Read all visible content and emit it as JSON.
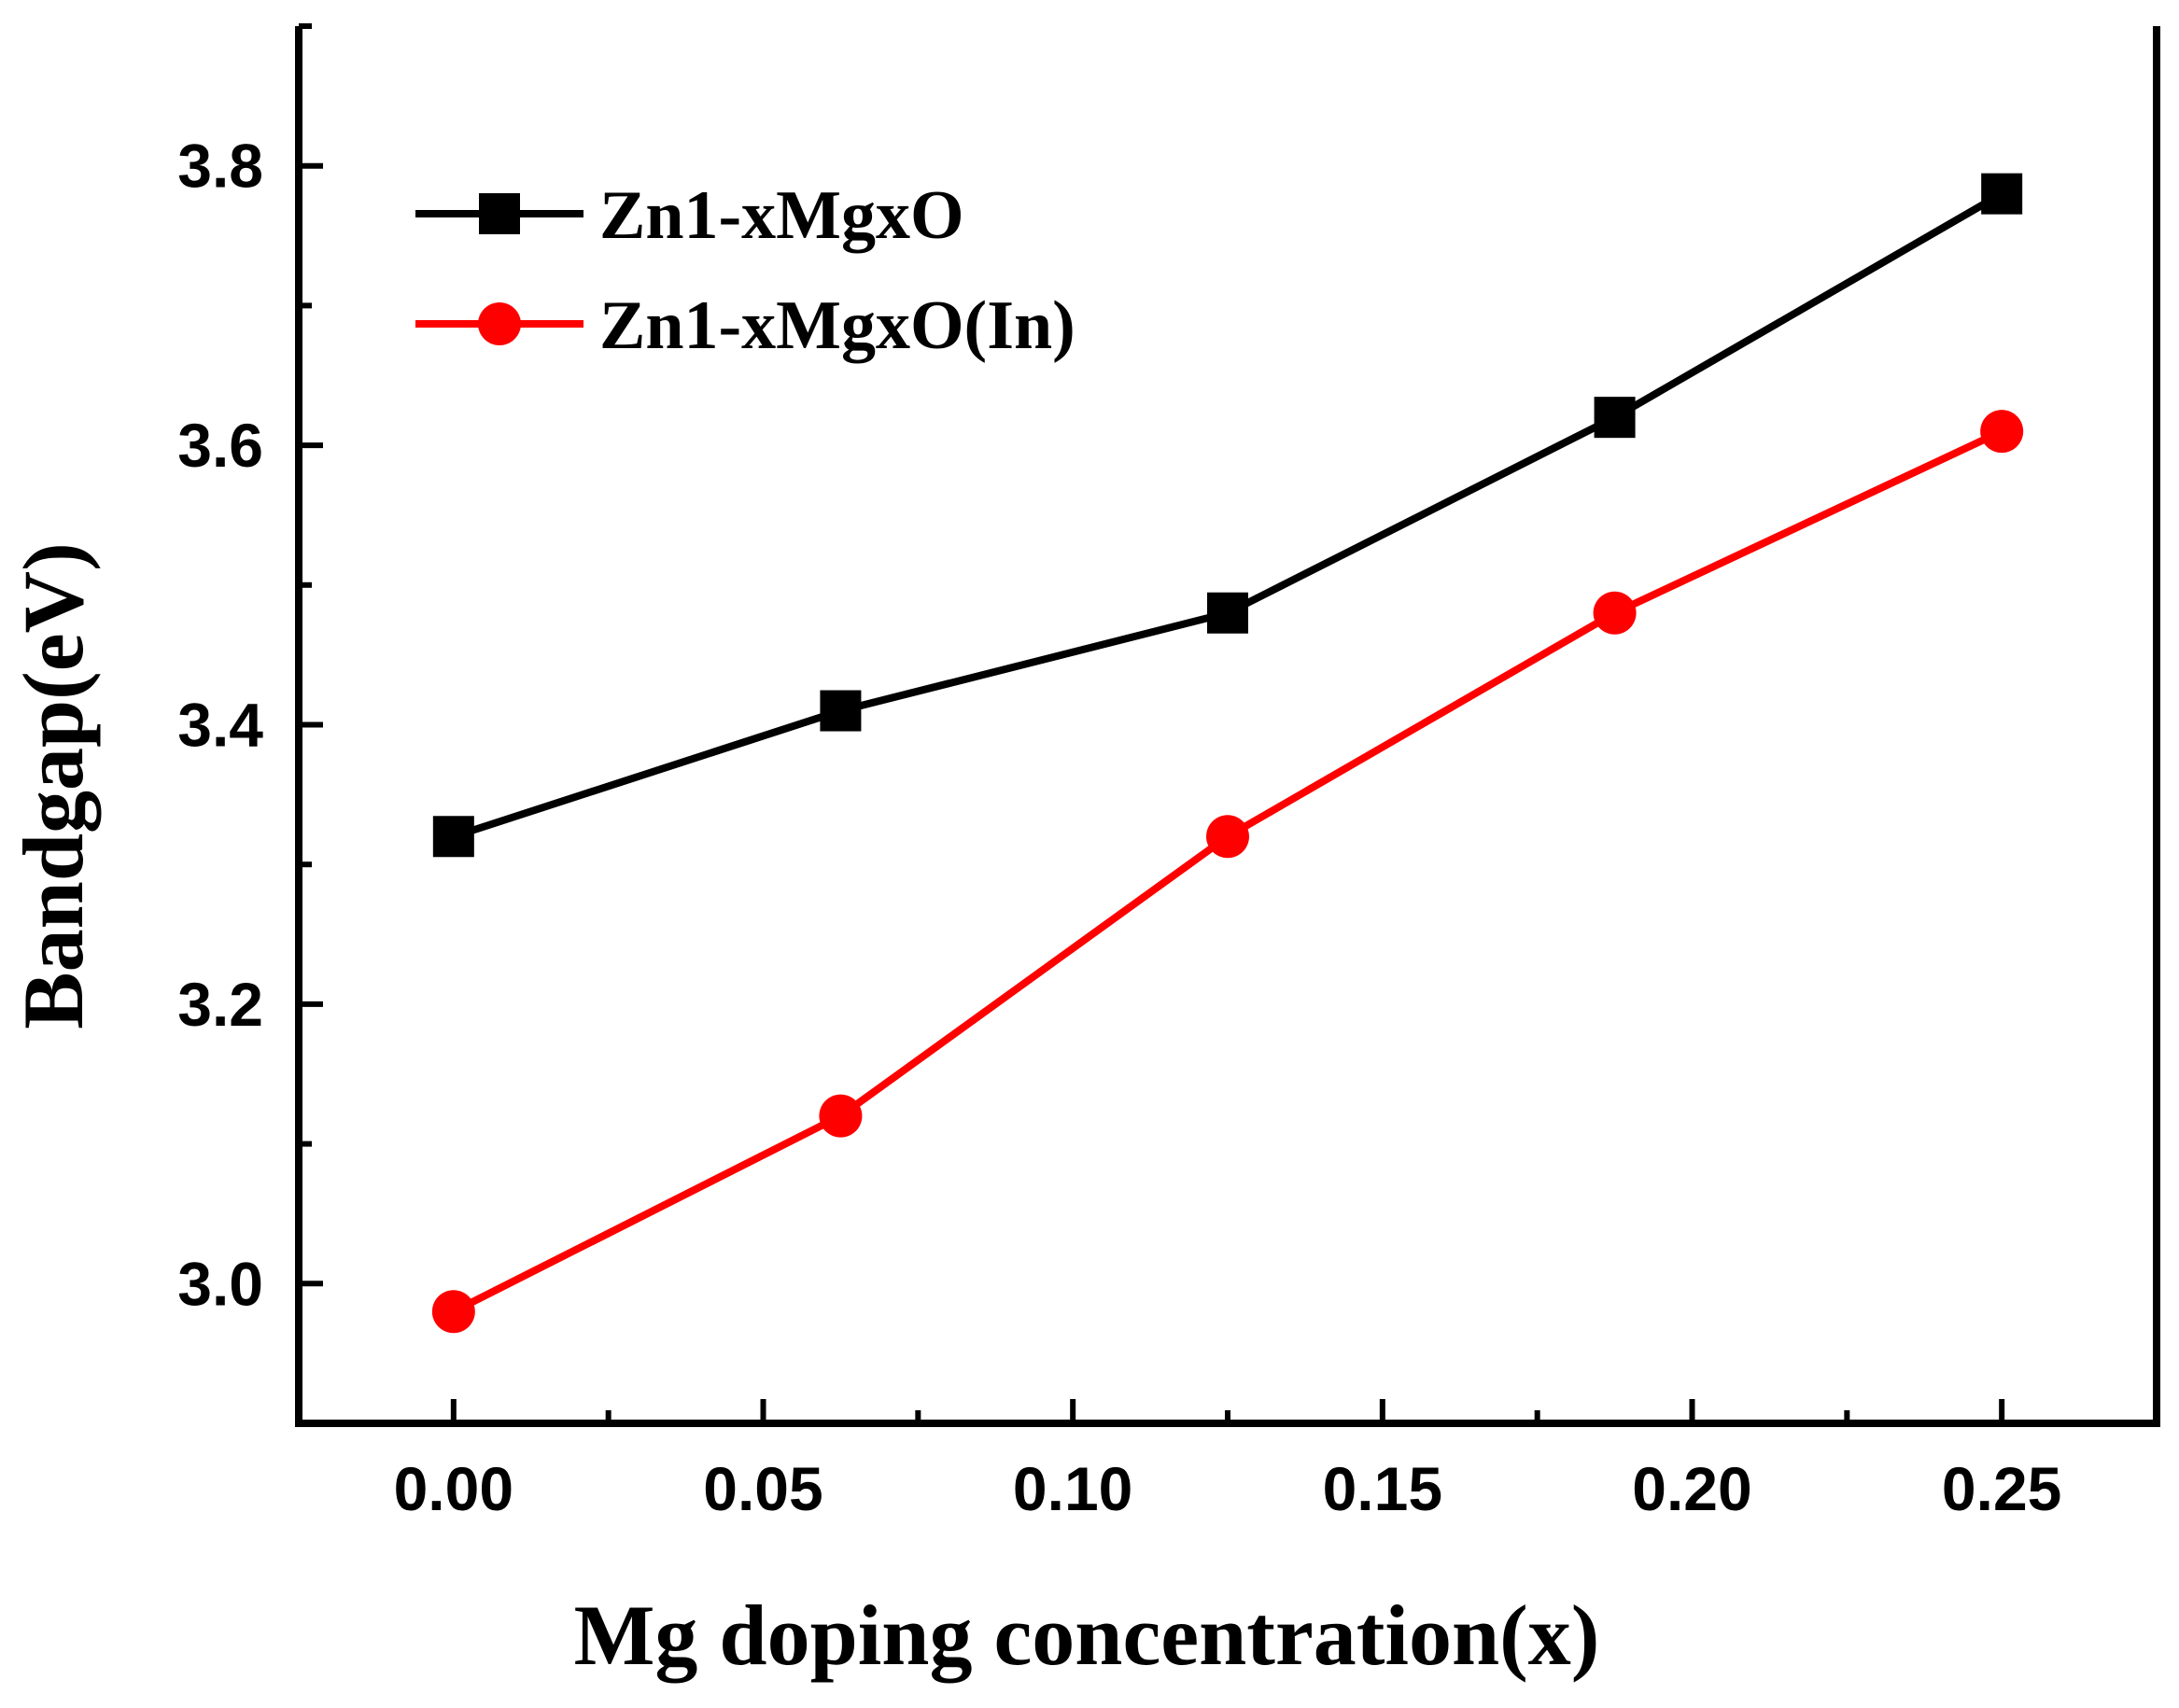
{
  "chart_data": {
    "type": "line",
    "title": "",
    "xlabel": "Mg doping concentration(x)",
    "ylabel": "Bandgap(eV)",
    "x": [
      0.0,
      0.0625,
      0.125,
      0.1875,
      0.25
    ],
    "xlim": [
      -0.025,
      0.275
    ],
    "ylim": [
      2.9,
      3.9
    ],
    "x_ticks": [
      0.0,
      0.05,
      0.1,
      0.15,
      0.2,
      0.25
    ],
    "x_tick_labels": [
      "0.00",
      "0.05",
      "0.10",
      "0.15",
      "0.20",
      "0.25"
    ],
    "y_ticks": [
      3.0,
      3.2,
      3.4,
      3.6,
      3.8
    ],
    "y_tick_labels": [
      "3.0",
      "3.2",
      "3.4",
      "3.6",
      "3.8"
    ],
    "grid": false,
    "legend_position": "top-left",
    "series": [
      {
        "name": "Zn1-xMgxO",
        "color": "#000000",
        "marker": "square",
        "values": [
          3.32,
          3.41,
          3.48,
          3.62,
          3.78
        ]
      },
      {
        "name": "Zn1-xMgxO(In)",
        "color": "#ff0000",
        "marker": "circle",
        "values": [
          2.98,
          3.12,
          3.32,
          3.48,
          3.61
        ]
      }
    ]
  }
}
